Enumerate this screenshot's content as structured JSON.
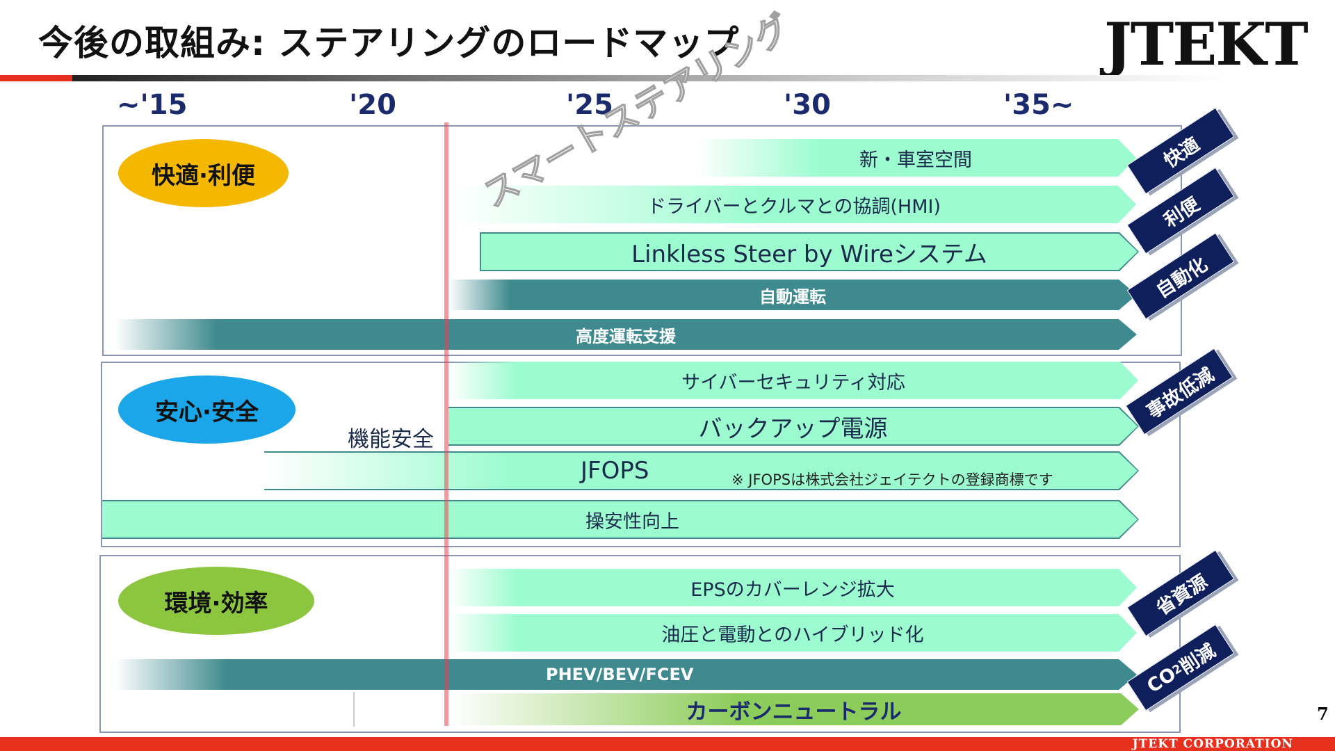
{
  "header": {
    "title": "今後の取組み: ステアリングのロードマップ",
    "logo": "JTEKT"
  },
  "timeline": {
    "years": [
      "~'15",
      "'20",
      "'25",
      "'30",
      "'35~"
    ]
  },
  "watermark": "スマートステアリング",
  "sections": [
    {
      "label": "快適·利便",
      "color": "#f5b800",
      "bars": [
        {
          "label": "新・車室空間",
          "style": "light"
        },
        {
          "label": "ドライバーとクルマとの協調(HMI)",
          "style": "light"
        },
        {
          "label": "Linkless Steer by Wireシステム",
          "style": "light"
        },
        {
          "label": "自動運転",
          "style": "dark"
        },
        {
          "label": "高度運転支援",
          "style": "dark"
        }
      ]
    },
    {
      "label": "安心·安全",
      "color": "#1aa6e8",
      "bars": [
        {
          "label": "サイバーセキュリティ対応",
          "style": "light"
        },
        {
          "label": "バックアップ電源",
          "style": "light"
        },
        {
          "label": "JFOPS",
          "style": "light"
        },
        {
          "label": "操安性向上",
          "style": "light"
        }
      ],
      "annotation": "機能安全",
      "note": "※ JFOPSは株式会社ジェイテクトの登録商標です"
    },
    {
      "label": "環境·効率",
      "color": "#8cc63e",
      "bars": [
        {
          "label": "EPSのカバーレンジ拡大",
          "style": "light"
        },
        {
          "label": "油圧と電動とのハイブリッド化",
          "style": "light"
        },
        {
          "label": "PHEV/BEV/FCEV",
          "style": "dark"
        },
        {
          "label": "カーボンニュートラル",
          "style": "green"
        }
      ]
    }
  ],
  "badges": {
    "b0": "快適",
    "b1": "利便",
    "b2": "自動化",
    "b3": "事故低減",
    "b4": "省資源",
    "b5_pre": "CO",
    "b5_sub": "2",
    "b5_post": "削減"
  },
  "colors": {
    "light_bar": "#9cfcd0",
    "dark_bar": "#3e8a8e",
    "green_bar": "#8ccc5a",
    "badge": "#0f1f5c",
    "accent_red": "#e8301e",
    "year_text": "#1a2a6c"
  },
  "footer": {
    "company": "JTEKT CORPORATION",
    "page": "7"
  }
}
